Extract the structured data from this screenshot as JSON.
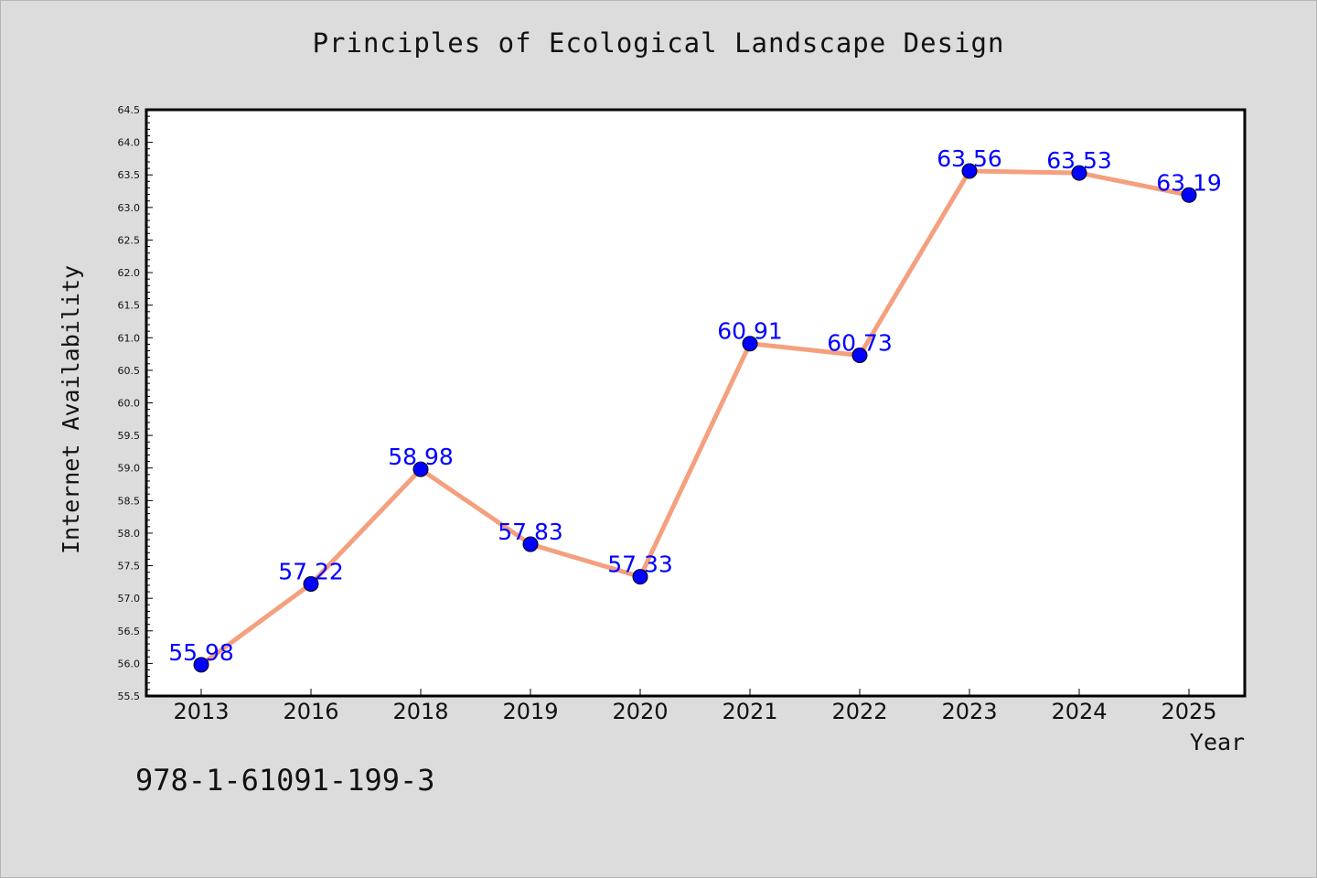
{
  "chart_data": {
    "type": "line",
    "title": "Principles of Ecological Landscape Design",
    "xlabel": "Year",
    "ylabel": "Internet Availability",
    "categories": [
      "2013",
      "2016",
      "2018",
      "2019",
      "2020",
      "2021",
      "2022",
      "2023",
      "2024",
      "2025"
    ],
    "values": [
      55.98,
      57.22,
      58.98,
      57.83,
      57.33,
      60.91,
      60.73,
      63.56,
      63.53,
      63.19
    ],
    "ylim": [
      55.5,
      64.5
    ],
    "yticks": [
      "55.5",
      "56.0",
      "56.5",
      "57.0",
      "57.5",
      "58.0",
      "58.5",
      "59.0",
      "59.5",
      "60.0",
      "60.5",
      "61.0",
      "61.5",
      "62.0",
      "62.5",
      "63.0",
      "63.5",
      "64.0",
      "64.5"
    ],
    "grid": false,
    "legend": "none",
    "data_labels": [
      "55.98",
      "57.22",
      "58.98",
      "57.83",
      "57.33",
      "60.91",
      "60.73",
      "63.56",
      "63.53",
      "63.19"
    ]
  },
  "footer": {
    "isbn": "978-1-61091-199-3"
  },
  "colors": {
    "background": "#dcdcdc",
    "plot_area": "#ffffff",
    "line": "#f4a07f",
    "marker": "#0000ff",
    "label": "#0000ff"
  }
}
